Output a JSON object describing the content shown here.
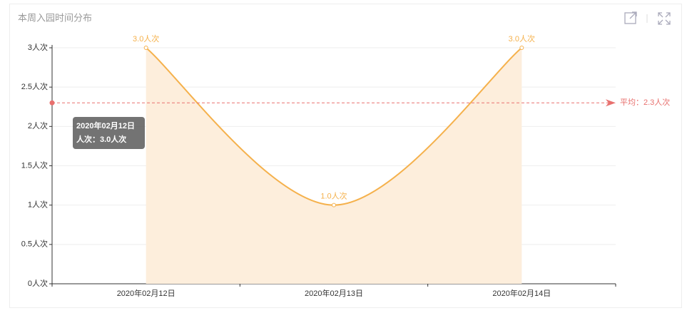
{
  "chart_data": {
    "type": "line",
    "title": "本周入园时间分布",
    "categories": [
      "2020年02月12日",
      "2020年02月13日",
      "2020年02月14日"
    ],
    "values": [
      3,
      1,
      3
    ],
    "value_labels": [
      "3.0人次",
      "1.0人次",
      "3.0人次"
    ],
    "color": "#f5b14c",
    "area_color": "#fdeedc",
    "ylim": [
      0,
      3
    ],
    "yticks": [
      {
        "value": 0,
        "label": "0人次"
      },
      {
        "value": 0.5,
        "label": "0.5人次"
      },
      {
        "value": 1,
        "label": "1人次"
      },
      {
        "value": 1.5,
        "label": "1.5人次"
      },
      {
        "value": 2,
        "label": "2人次"
      },
      {
        "value": 2.5,
        "label": "2.5人次"
      },
      {
        "value": 3,
        "label": "3人次"
      }
    ],
    "grid": true,
    "mark_line": {
      "value": 2.3,
      "label": "平均：2.3人次",
      "color": "#e8706e"
    },
    "tooltip": {
      "title": "2020年02月12日",
      "text": "人次：3.0人次"
    }
  }
}
